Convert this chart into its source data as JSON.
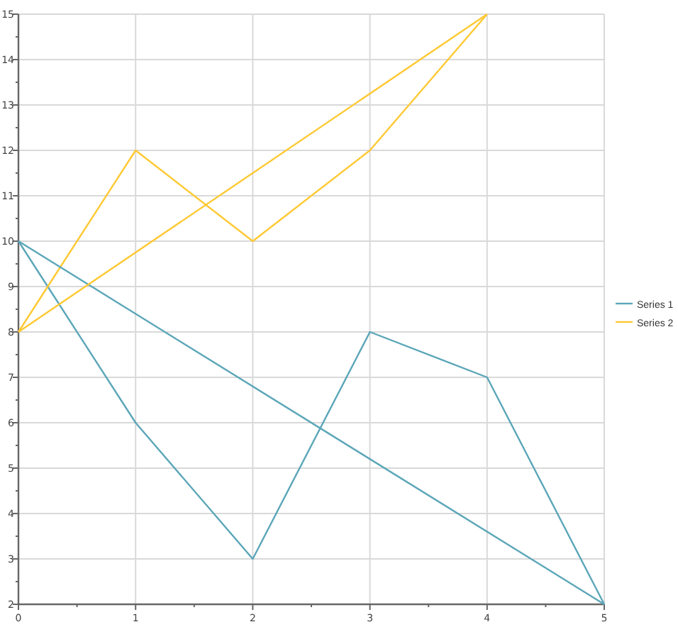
{
  "chart_data": {
    "type": "line",
    "xlim": [
      0,
      5
    ],
    "ylim": [
      2,
      15
    ],
    "xticks": [
      0,
      {
        "value": 0.5,
        "label": null
      },
      1,
      {
        "value": 1.5,
        "label": null
      },
      2,
      {
        "value": 2.5,
        "label": null
      },
      3,
      {
        "value": 3.5,
        "label": null
      },
      4,
      {
        "value": 4.5,
        "label": null
      },
      5
    ],
    "yticks": [
      2,
      {
        "value": 2.5,
        "label": null
      },
      3,
      {
        "value": 3.5,
        "label": null
      },
      4,
      {
        "value": 4.5,
        "label": null
      },
      5,
      {
        "value": 5.5,
        "label": null
      },
      6,
      {
        "value": 6.5,
        "label": null
      },
      7,
      {
        "value": 7.5,
        "label": null
      },
      8,
      {
        "value": 8.5,
        "label": null
      },
      9,
      {
        "value": 9.5,
        "label": null
      },
      10,
      {
        "value": 10.5,
        "label": null
      },
      11,
      {
        "value": 11.5,
        "label": null
      },
      12,
      {
        "value": 12.5,
        "label": null
      },
      13,
      {
        "value": 13.5,
        "label": null
      },
      14,
      {
        "value": 14.5,
        "label": null
      },
      15
    ],
    "grid": true,
    "legend": "right",
    "marker": "none",
    "line_style": "solid",
    "series": [
      {
        "name": "Series 1",
        "color": "#5ba6b8",
        "x": [
          0,
          1,
          2,
          3,
          4,
          5
        ],
        "values": [
          10,
          6,
          3,
          8,
          7,
          2
        ]
      },
      {
        "name": "Series 2",
        "color": "#ffc933",
        "x": [
          0,
          1,
          2,
          3,
          4
        ],
        "values": [
          8,
          12,
          10,
          12,
          15
        ]
      },
      {
        "color": "#5ba6b8",
        "x": [
          5,
          0
        ],
        "values": [
          2,
          10
        ]
      },
      {
        "color": "#ffc933",
        "x": [
          4,
          0
        ],
        "values": [
          15,
          8
        ]
      }
    ]
  }
}
